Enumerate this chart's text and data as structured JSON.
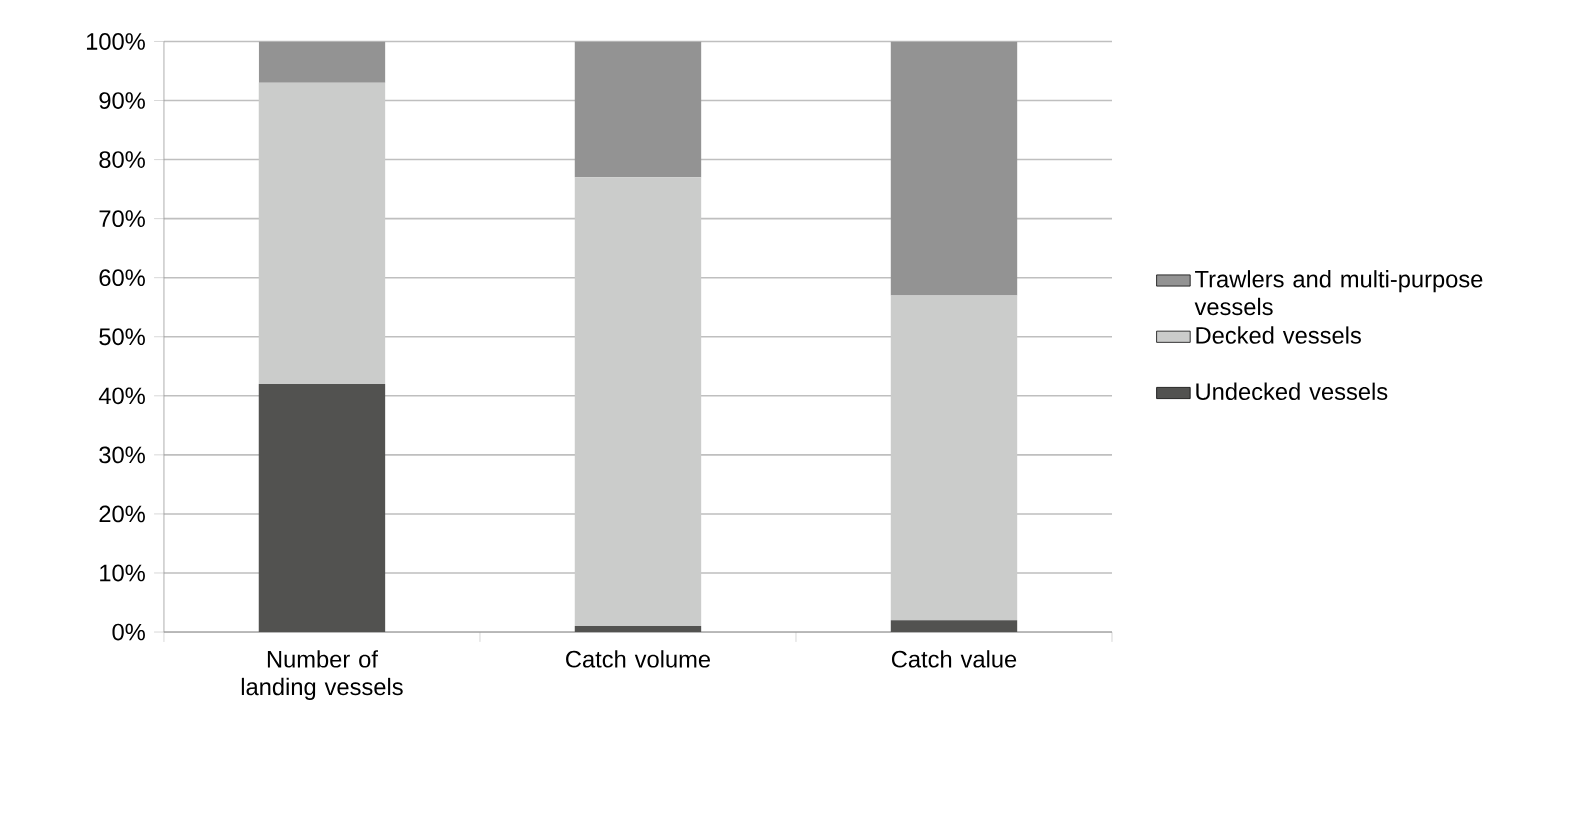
{
  "chart_data": {
    "type": "bar",
    "stacked": true,
    "categories": [
      "Number of landing vessels",
      "Catch volume",
      "Catch value"
    ],
    "series": [
      {
        "name": "Undecked vessels",
        "color": "#525250",
        "values": [
          42,
          1,
          2
        ]
      },
      {
        "name": "Decked vessels",
        "color": "#cbcccb",
        "values": [
          51,
          76,
          55
        ]
      },
      {
        "name": "Trawlers and multi-purpose vessels",
        "color": "#939393",
        "values": [
          7,
          23,
          43
        ]
      }
    ],
    "ylim": [
      0,
      100
    ],
    "yticks": [
      {
        "value": 0,
        "label": "0%"
      },
      {
        "value": 10,
        "label": "10%"
      },
      {
        "value": 20,
        "label": "20%"
      },
      {
        "value": 30,
        "label": "30%"
      },
      {
        "value": 40,
        "label": "40%"
      },
      {
        "value": 50,
        "label": "50%"
      },
      {
        "value": 60,
        "label": "60%"
      },
      {
        "value": 70,
        "label": "70%"
      },
      {
        "value": 80,
        "label": "80%"
      },
      {
        "value": 90,
        "label": "90%"
      },
      {
        "value": 100,
        "label": "100%"
      }
    ],
    "grid": "y",
    "legend": "right"
  }
}
